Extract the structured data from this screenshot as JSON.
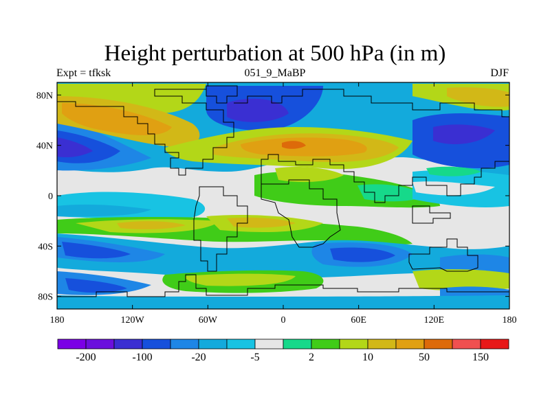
{
  "title": "Height perturbation at 500 hPa (in m)",
  "subtitle_left": "Expt = tfksk",
  "subtitle_center": "051_9_MaBP",
  "subtitle_right": "DJF",
  "chart_data": {
    "type": "heatmap",
    "projection": "cylindrical-equidistant",
    "x_ticks": [
      "180",
      "120W",
      "60W",
      "0",
      "60E",
      "120E",
      "180"
    ],
    "y_ticks": [
      "80N",
      "40N",
      "0",
      "40S",
      "80S"
    ],
    "xlim": [
      -180,
      180
    ],
    "ylim": [
      -90,
      90
    ],
    "colorbar": {
      "colors": [
        "#7b00e6",
        "#6b10dd",
        "#3a2fd2",
        "#1650dc",
        "#1e86e6",
        "#13aadc",
        "#18c3e3",
        "#e6e6e6",
        "#16d98a",
        "#40cc18",
        "#b3d718",
        "#d2b817",
        "#e0a012",
        "#dd6a0a",
        "#f05050",
        "#e81818"
      ],
      "labels": [
        "-200",
        "-100",
        "-20",
        "-5",
        "2",
        "10",
        "50",
        "150"
      ]
    }
  }
}
